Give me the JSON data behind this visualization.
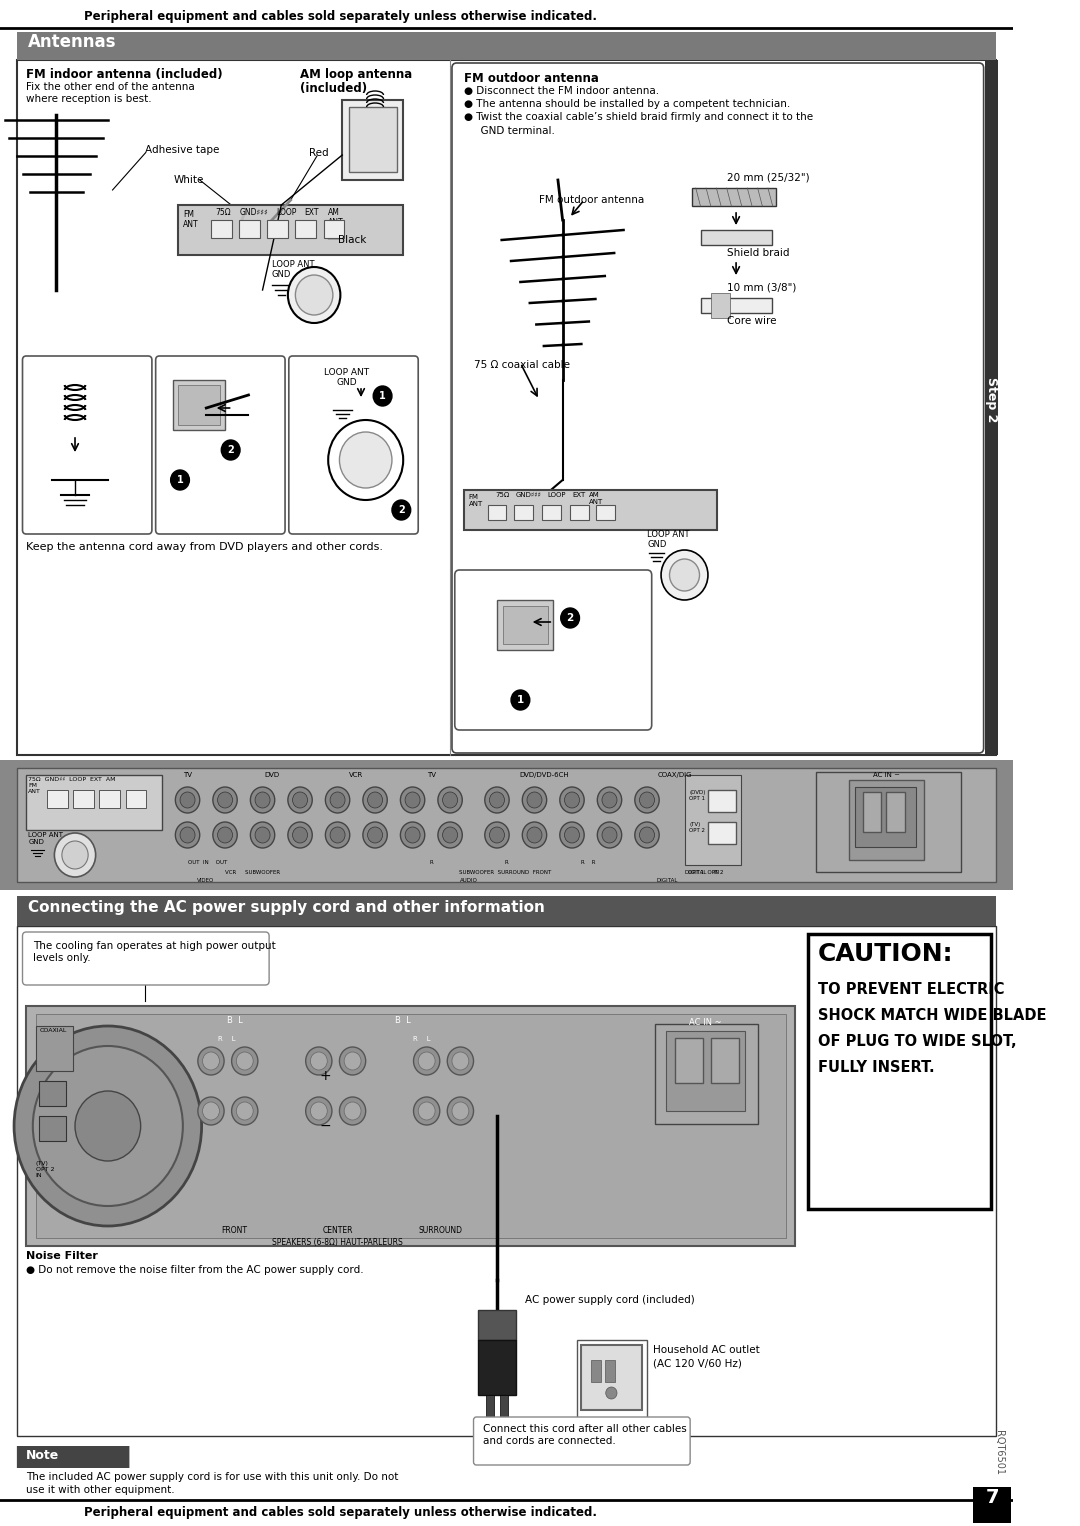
{
  "page_bg": "#ffffff",
  "top_text": "Peripheral equipment and cables sold separately unless otherwise indicated.",
  "section1_title": "Antennas",
  "section1_bg": "#7a7a7a",
  "section2_title": "Connecting the AC power supply cord and other information",
  "section2_bg": "#555555",
  "caution_title": "CAUTION:",
  "caution_lines": [
    "TO PREVENT ELECTRIC",
    "SHOCK MATCH WIDE BLADE",
    "OF PLUG TO WIDE SLOT,",
    "FULLY INSERT."
  ],
  "note_title": "Note",
  "fm_indoor_title": "FM indoor antenna (included)",
  "fm_indoor_line1": "Fix the other end of the antenna",
  "fm_indoor_line2": "where reception is best.",
  "am_loop_line1": "AM loop antenna",
  "am_loop_line2": "(included)",
  "fm_outdoor_title": "FM outdoor antenna",
  "fm_outdoor_b1": "● Disconnect the FM indoor antenna.",
  "fm_outdoor_b2": "● The antenna should be installed by a competent technician.",
  "fm_outdoor_b3a": "● Twist the coaxial cable’s shield braid firmly and connect it to the",
  "fm_outdoor_b3b": "  GND terminal.",
  "adhesive_tape": "Adhesive tape",
  "white_lbl": "White",
  "red_lbl": "Red",
  "black_lbl": "Black",
  "loop_ant_gnd": "LOOP ANT\nGND",
  "keep_text": "Keep the antenna cord away from DVD players and other cords.",
  "fm_outdoor_lbl": "FM outdoor antenna",
  "coaxial_lbl": "75 Ω coaxial cable",
  "mm20_lbl": "20 mm (25/32\")",
  "shield_lbl": "Shield braid",
  "mm10_lbl": "10 mm (3/8\")",
  "core_lbl": "Core wire",
  "step2_lbl": "Step 2",
  "rqt_lbl": "RQT6501",
  "page_num": "7",
  "cooling_text1": "The cooling fan operates at high power output",
  "cooling_text2": "levels only.",
  "noise_filter_lbl": "Noise Filter",
  "noise_filter_text": "● Do not remove the noise filter from the AC power supply cord.",
  "note_text1": "The included AC power supply cord is for use with this unit only. Do not",
  "note_text2": "use it with other equipment.",
  "ac_outlet_text1": "Household AC outlet",
  "ac_outlet_text2": "(AC 120 V/60 Hz)",
  "ac_cord_text": "AC power supply cord (included)",
  "connect_text1": "Connect this cord after all other cables",
  "connect_text2": "and cords are connected."
}
